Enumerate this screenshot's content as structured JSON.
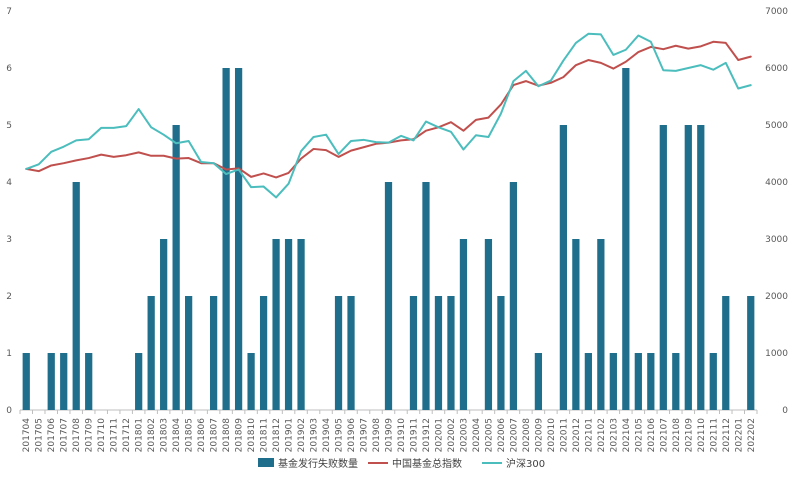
{
  "chart_data": {
    "type": "bar",
    "title": "",
    "xlabel": "",
    "ylabel": "",
    "ylim_left": [
      0,
      7
    ],
    "ylim_right": [
      0,
      7000
    ],
    "yticks_left": [
      "0",
      "1",
      "2",
      "3",
      "4",
      "5",
      "6",
      "7"
    ],
    "yticks_right": [
      "0",
      "1000",
      "2000",
      "3000",
      "4000",
      "5000",
      "6000",
      "7000"
    ],
    "grid": false,
    "legend_position": "bottom",
    "categories": [
      "201704",
      "201705",
      "201706",
      "201707",
      "201708",
      "201709",
      "201710",
      "201711",
      "201712",
      "201801",
      "201802",
      "201803",
      "201804",
      "201805",
      "201806",
      "201807",
      "201808",
      "201809",
      "201810",
      "201811",
      "201812",
      "201901",
      "201902",
      "201903",
      "201904",
      "201905",
      "201906",
      "201907",
      "201908",
      "201909",
      "201910",
      "201911",
      "201912",
      "202001",
      "202002",
      "202003",
      "202004",
      "202005",
      "202006",
      "202007",
      "202008",
      "202009",
      "202010",
      "202011",
      "202012",
      "202101",
      "202102",
      "202103",
      "202104",
      "202105",
      "202106",
      "202107",
      "202108",
      "202109",
      "202110",
      "202111",
      "202112",
      "202201",
      "202202"
    ],
    "series": [
      {
        "name": "基金发行失败数量",
        "kind": "bar",
        "axis": "left",
        "color": "#1f6e8c",
        "values": [
          1,
          0,
          1,
          1,
          4,
          1,
          0,
          0,
          0,
          1,
          2,
          3,
          5,
          2,
          0,
          2,
          6,
          6,
          1,
          2,
          3,
          3,
          3,
          0,
          0,
          2,
          2,
          0,
          0,
          4,
          0,
          2,
          4,
          2,
          2,
          3,
          0,
          3,
          2,
          4,
          0,
          1,
          0,
          5,
          3,
          1,
          3,
          1,
          6,
          1,
          1,
          5,
          1,
          5,
          5,
          1,
          2,
          0,
          2
        ]
      },
      {
        "name": "中国基金总指数",
        "kind": "line",
        "axis": "right",
        "color": "#c0504d",
        "values": [
          4230,
          4190,
          4290,
          4330,
          4380,
          4420,
          4480,
          4440,
          4470,
          4520,
          4460,
          4460,
          4410,
          4420,
          4330,
          4330,
          4220,
          4240,
          4090,
          4150,
          4080,
          4160,
          4410,
          4580,
          4560,
          4440,
          4550,
          4610,
          4670,
          4690,
          4730,
          4750,
          4900,
          4960,
          5050,
          4900,
          5090,
          5130,
          5360,
          5700,
          5770,
          5690,
          5740,
          5840,
          6050,
          6140,
          6090,
          5990,
          6110,
          6280,
          6370,
          6330,
          6390,
          6340,
          6380,
          6460,
          6440,
          6140,
          6200
        ]
      },
      {
        "name": "沪深300",
        "kind": "line",
        "axis": "right",
        "color": "#4bbdbd",
        "values": [
          4230,
          4310,
          4530,
          4620,
          4730,
          4750,
          4950,
          4950,
          4980,
          5280,
          4960,
          4830,
          4680,
          4720,
          4350,
          4330,
          4140,
          4220,
          3910,
          3920,
          3730,
          3970,
          4540,
          4790,
          4830,
          4490,
          4720,
          4740,
          4700,
          4690,
          4810,
          4730,
          5060,
          4960,
          4880,
          4570,
          4820,
          4790,
          5200,
          5770,
          5950,
          5680,
          5780,
          6130,
          6440,
          6600,
          6590,
          6230,
          6320,
          6570,
          6460,
          5960,
          5950,
          6000,
          6050,
          5970,
          6090,
          5640,
          5700
        ]
      }
    ]
  }
}
